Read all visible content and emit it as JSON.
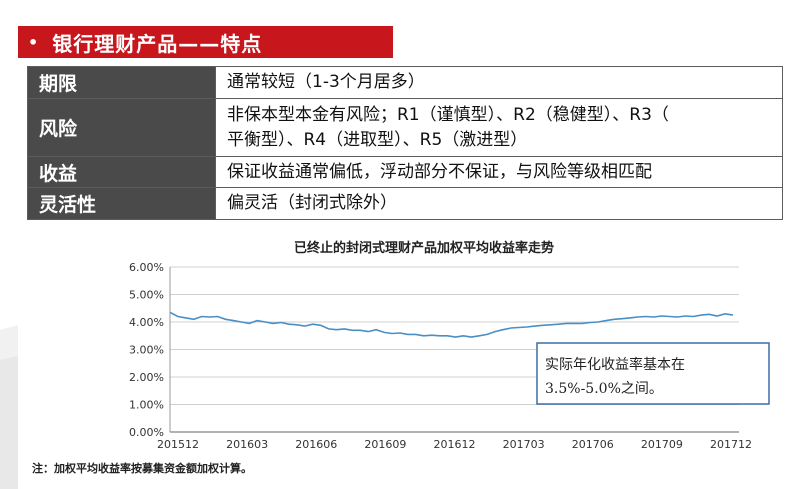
{
  "title": {
    "bullet": "•",
    "text": "银行理财产品——特点"
  },
  "table": [
    {
      "key": "期限",
      "value": "通常较短（1-3个月居多）"
    },
    {
      "key": "风险",
      "value_lines": [
        "非保本型本金有风险；R1（谨慎型）、R2（稳健型）、R3（",
        "平衡型）、R4（进取型）、R5（激进型）"
      ]
    },
    {
      "key": "收益",
      "value": "保证收益通常偏低，浮动部分不保证，与风险等级相匹配"
    },
    {
      "key": "灵活性",
      "value": "偏灵活（封闭式除外）"
    }
  ],
  "chart_data": {
    "type": "line",
    "title": "已终止的封闭式理财产品加权平均收益率走势",
    "ylim": [
      0,
      6
    ],
    "y_ticks": [
      "0.00%",
      "1.00%",
      "2.00%",
      "3.00%",
      "4.00%",
      "5.00%",
      "6.00%"
    ],
    "x_ticks": [
      "201512",
      "201603",
      "201606",
      "201609",
      "201612",
      "201703",
      "201706",
      "201709",
      "201712"
    ],
    "series": [
      {
        "color": "#4a8fc4",
        "values": [
          4.35,
          4.2,
          4.15,
          4.1,
          4.2,
          4.18,
          4.2,
          4.1,
          4.05,
          4.0,
          3.95,
          4.05,
          4.0,
          3.95,
          3.98,
          3.92,
          3.9,
          3.85,
          3.92,
          3.88,
          3.75,
          3.72,
          3.75,
          3.7,
          3.7,
          3.65,
          3.72,
          3.62,
          3.58,
          3.6,
          3.55,
          3.55,
          3.5,
          3.52,
          3.5,
          3.5,
          3.45,
          3.5,
          3.45,
          3.5,
          3.55,
          3.65,
          3.72,
          3.78,
          3.8,
          3.82,
          3.85,
          3.88,
          3.9,
          3.92,
          3.95,
          3.95,
          3.95,
          3.98,
          4.0,
          4.05,
          4.1,
          4.12,
          4.15,
          4.18,
          4.2,
          4.18,
          4.22,
          4.2,
          4.18,
          4.22,
          4.2,
          4.25,
          4.28,
          4.22,
          4.3,
          4.25
        ]
      }
    ],
    "grid": true,
    "legend": "none",
    "annotation": {
      "lines": [
        "实际年化收益率基本在",
        "3.5%-5.0%之间。"
      ]
    },
    "note": "注：加权平均收益率按募集资金额加权计算。"
  }
}
